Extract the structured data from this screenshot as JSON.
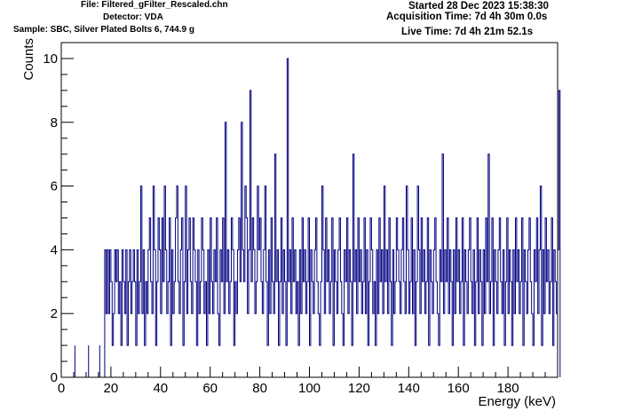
{
  "header": {
    "file": "File: Filtered_gFilter_Rescaled.chn",
    "detector": "Detector: VDA",
    "sample": "Sample: SBC, Silver Plated Bolts 6, 744.9 g",
    "started": "Started 28 Dec 2023 15:38:30",
    "acquisition": "Acquisition Time: 7d 4h 30m 0.0s",
    "live": "Live Time: 7d 4h 21m 52.1s"
  },
  "colors": {
    "histogram": "#000080",
    "frame": "#000000"
  },
  "chart_data": {
    "type": "histogram",
    "xlabel": "Energy (keV)",
    "ylabel": "Counts",
    "xlim": [
      0,
      200
    ],
    "ylim": [
      0,
      10.5
    ],
    "bin_width": 0.5,
    "x_start": 17.5,
    "grid": false,
    "x_ticks": [
      "0",
      "20",
      "40",
      "60",
      "80",
      "100",
      "120",
      "140",
      "160",
      "180"
    ],
    "y_ticks": [
      "0",
      "2",
      "4",
      "6",
      "8",
      "10"
    ],
    "sparse_counts": [
      {
        "x": 5.5,
        "y": 1
      },
      {
        "x": 11.0,
        "y": 1
      },
      {
        "x": 15.5,
        "y": 1
      }
    ],
    "values": [
      4,
      2,
      4,
      2,
      4,
      3,
      1,
      2,
      4,
      3,
      4,
      2,
      3,
      1,
      4,
      3,
      2,
      4,
      1,
      3,
      4,
      2,
      3,
      4,
      3,
      1,
      4,
      2,
      3,
      6,
      2,
      4,
      1,
      3,
      2,
      4,
      5,
      3,
      2,
      6,
      4,
      1,
      3,
      5,
      4,
      2,
      5,
      3,
      6,
      4,
      2,
      3,
      5,
      1,
      4,
      2,
      3,
      5,
      6,
      3,
      2,
      4,
      5,
      1,
      3,
      6,
      2,
      4,
      5,
      3,
      2,
      5,
      4,
      3,
      1,
      4,
      2,
      3,
      5,
      4,
      2,
      3,
      1,
      4,
      2,
      5,
      3,
      2,
      4,
      3,
      5,
      2,
      1,
      4,
      3,
      5,
      2,
      8,
      3,
      4,
      2,
      3,
      5,
      4,
      1,
      3,
      2,
      4,
      5,
      3,
      8,
      4,
      3,
      6,
      5,
      2,
      4,
      9,
      3,
      5,
      4,
      2,
      3,
      6,
      4,
      5,
      3,
      2,
      4,
      6,
      3,
      1,
      4,
      2,
      5,
      3,
      2,
      7,
      3,
      4,
      1,
      3,
      5,
      2,
      4,
      3,
      1,
      10,
      3,
      4,
      2,
      5,
      3,
      4,
      2,
      3,
      1,
      4,
      2,
      5,
      3,
      4,
      2,
      3,
      5,
      1,
      4,
      3,
      2,
      4,
      5,
      3,
      2,
      1,
      3,
      6,
      4,
      2,
      5,
      3,
      4,
      2,
      3,
      5,
      1,
      4,
      3,
      2,
      4,
      5,
      3,
      2,
      1,
      4,
      3,
      5,
      2,
      4,
      3,
      1,
      7,
      3,
      4,
      2,
      5,
      3,
      4,
      2,
      3,
      5,
      2,
      4,
      1,
      3,
      5,
      4,
      2,
      3,
      1,
      4,
      2,
      5,
      3,
      4,
      2,
      6,
      3,
      4,
      2,
      5,
      3,
      1,
      4,
      2,
      3,
      5,
      4,
      3,
      2,
      4,
      5,
      3,
      2,
      6,
      4,
      2,
      3,
      5,
      2,
      4,
      1,
      3,
      6,
      4,
      2,
      5,
      3,
      4,
      2,
      3,
      5,
      1,
      4,
      3,
      2,
      4,
      5,
      3,
      2,
      1,
      4,
      3,
      7,
      2,
      4,
      3,
      5,
      2,
      4,
      3,
      1,
      4,
      2,
      5,
      3,
      4,
      2,
      3,
      5,
      1,
      4,
      3,
      2,
      4,
      5,
      3,
      2,
      4,
      1,
      3,
      5,
      2,
      4,
      3,
      1,
      4,
      2,
      5,
      3,
      7,
      2,
      3,
      5,
      1,
      4,
      3,
      2,
      4,
      5,
      3,
      2,
      4,
      1,
      3,
      5,
      2,
      4,
      3,
      1,
      4,
      2,
      5,
      3,
      4,
      2,
      3,
      5,
      1,
      4,
      3,
      2,
      4,
      5,
      3,
      2,
      1,
      4,
      3,
      5,
      2,
      4,
      6,
      1,
      4,
      2,
      5,
      3,
      4,
      2,
      3,
      5,
      1,
      4,
      3,
      2,
      4,
      9
    ]
  }
}
